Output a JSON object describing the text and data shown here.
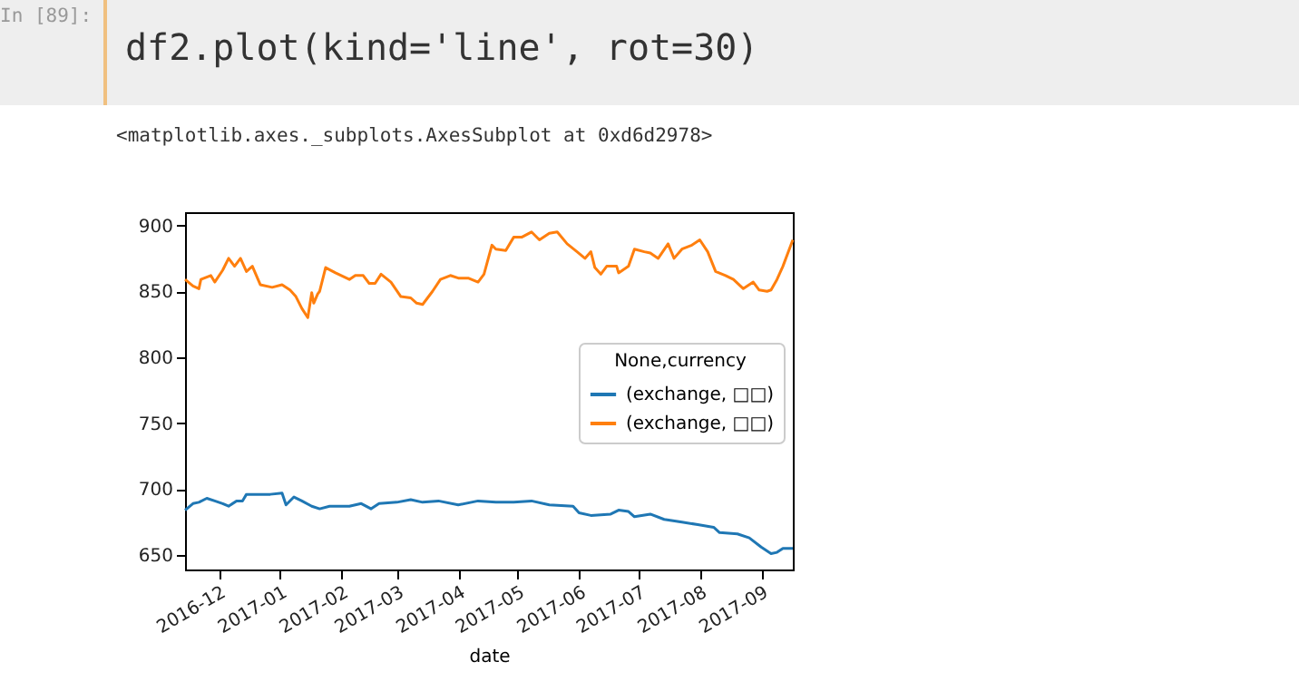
{
  "chart_data": {
    "type": "line",
    "xlabel": "date",
    "legend_title": "None,currency",
    "legend": "right",
    "grid": false,
    "annotations": [
      "In [89]:",
      "df2.plot(kind='line', rot=30)",
      "<matplotlib.axes._subplots.AxesSubplot at 0xd6d2978>"
    ],
    "xlim": [
      "2016-11-14",
      "2017-09-17"
    ],
    "xticks": [
      "2016-12",
      "2017-01",
      "2017-02",
      "2017-03",
      "2017-04",
      "2017-05",
      "2017-06",
      "2017-07",
      "2017-08",
      "2017-09"
    ],
    "ylim": [
      639,
      910
    ],
    "yticks": [
      650,
      700,
      750,
      800,
      850,
      900
    ],
    "series": [
      {
        "name": "(exchange, □□)",
        "color": "#1f77b4",
        "x": [
          "2016-11-14",
          "2016-11-18",
          "2016-11-21",
          "2016-11-25",
          "2016-11-29",
          "2016-12-03",
          "2016-12-06",
          "2016-12-10",
          "2016-12-13",
          "2016-12-15",
          "2016-12-21",
          "2016-12-27",
          "2017-01-02",
          "2017-01-04",
          "2017-01-08",
          "2017-01-12",
          "2017-01-17",
          "2017-01-21",
          "2017-01-26",
          "2017-02-05",
          "2017-02-11",
          "2017-02-16",
          "2017-02-20",
          "2017-03-01",
          "2017-03-08",
          "2017-03-14",
          "2017-03-22",
          "2017-04-01",
          "2017-04-11",
          "2017-04-20",
          "2017-04-29",
          "2017-05-08",
          "2017-05-17",
          "2017-05-29",
          "2017-06-01",
          "2017-06-07",
          "2017-06-17",
          "2017-06-21",
          "2017-06-26",
          "2017-06-29",
          "2017-07-07",
          "2017-07-14",
          "2017-07-23",
          "2017-07-31",
          "2017-08-08",
          "2017-08-11",
          "2017-08-20",
          "2017-08-26",
          "2017-09-01",
          "2017-09-06",
          "2017-09-09",
          "2017-09-12",
          "2017-09-17"
        ],
        "values": [
          684,
          689,
          690,
          693,
          691,
          689,
          687,
          691,
          691,
          696,
          696,
          696,
          697,
          688,
          694,
          691,
          687,
          685,
          687,
          687,
          689,
          685,
          689,
          690,
          692,
          690,
          691,
          688,
          691,
          690,
          690,
          691,
          688,
          687,
          682,
          680,
          681,
          684,
          683,
          679,
          681,
          677,
          675,
          673,
          671,
          667,
          666,
          663,
          656,
          651,
          652,
          655,
          655
        ]
      },
      {
        "name": "(exchange, □□)",
        "color": "#ff7f0e",
        "x": [
          "2016-11-14",
          "2016-11-18",
          "2016-11-21",
          "2016-11-22",
          "2016-11-27",
          "2016-11-29",
          "2016-12-03",
          "2016-12-06",
          "2016-12-09",
          "2016-12-12",
          "2016-12-15",
          "2016-12-18",
          "2016-12-22",
          "2016-12-28",
          "2017-01-02",
          "2017-01-06",
          "2017-01-09",
          "2017-01-12",
          "2017-01-15",
          "2017-01-17",
          "2017-01-18",
          "2017-01-20",
          "2017-01-21",
          "2017-01-24",
          "2017-01-29",
          "2017-02-05",
          "2017-02-08",
          "2017-02-12",
          "2017-02-15",
          "2017-02-18",
          "2017-02-21",
          "2017-02-26",
          "2017-03-03",
          "2017-03-08",
          "2017-03-11",
          "2017-03-14",
          "2017-03-19",
          "2017-03-23",
          "2017-03-28",
          "2017-04-01",
          "2017-04-06",
          "2017-04-11",
          "2017-04-14",
          "2017-04-18",
          "2017-04-20",
          "2017-04-25",
          "2017-04-29",
          "2017-05-03",
          "2017-05-08",
          "2017-05-12",
          "2017-05-17",
          "2017-05-21",
          "2017-05-26",
          "2017-05-31",
          "2017-06-04",
          "2017-06-07",
          "2017-06-09",
          "2017-06-12",
          "2017-06-15",
          "2017-06-20",
          "2017-06-21",
          "2017-06-26",
          "2017-06-29",
          "2017-07-04",
          "2017-07-07",
          "2017-07-11",
          "2017-07-16",
          "2017-07-19",
          "2017-07-23",
          "2017-07-28",
          "2017-08-01",
          "2017-08-05",
          "2017-08-09",
          "2017-08-14",
          "2017-08-18",
          "2017-08-23",
          "2017-08-28",
          "2017-08-31",
          "2017-09-04",
          "2017-09-06",
          "2017-09-09",
          "2017-09-12",
          "2017-09-17"
        ],
        "values": [
          859,
          854,
          852,
          859,
          862,
          857,
          866,
          875,
          869,
          875,
          865,
          869,
          855,
          853,
          855,
          851,
          846,
          837,
          830,
          849,
          841,
          848,
          850,
          868,
          864,
          859,
          862,
          862,
          856,
          856,
          863,
          857,
          846,
          845,
          841,
          840,
          850,
          859,
          862,
          860,
          860,
          857,
          863,
          885,
          882,
          881,
          891,
          891,
          895,
          889,
          894,
          895,
          886,
          880,
          875,
          880,
          868,
          863,
          869,
          869,
          864,
          869,
          882,
          880,
          879,
          875,
          886,
          875,
          882,
          885,
          889,
          880,
          865,
          862,
          859,
          852,
          857,
          851,
          850,
          851,
          859,
          869,
          889
        ]
      }
    ]
  }
}
